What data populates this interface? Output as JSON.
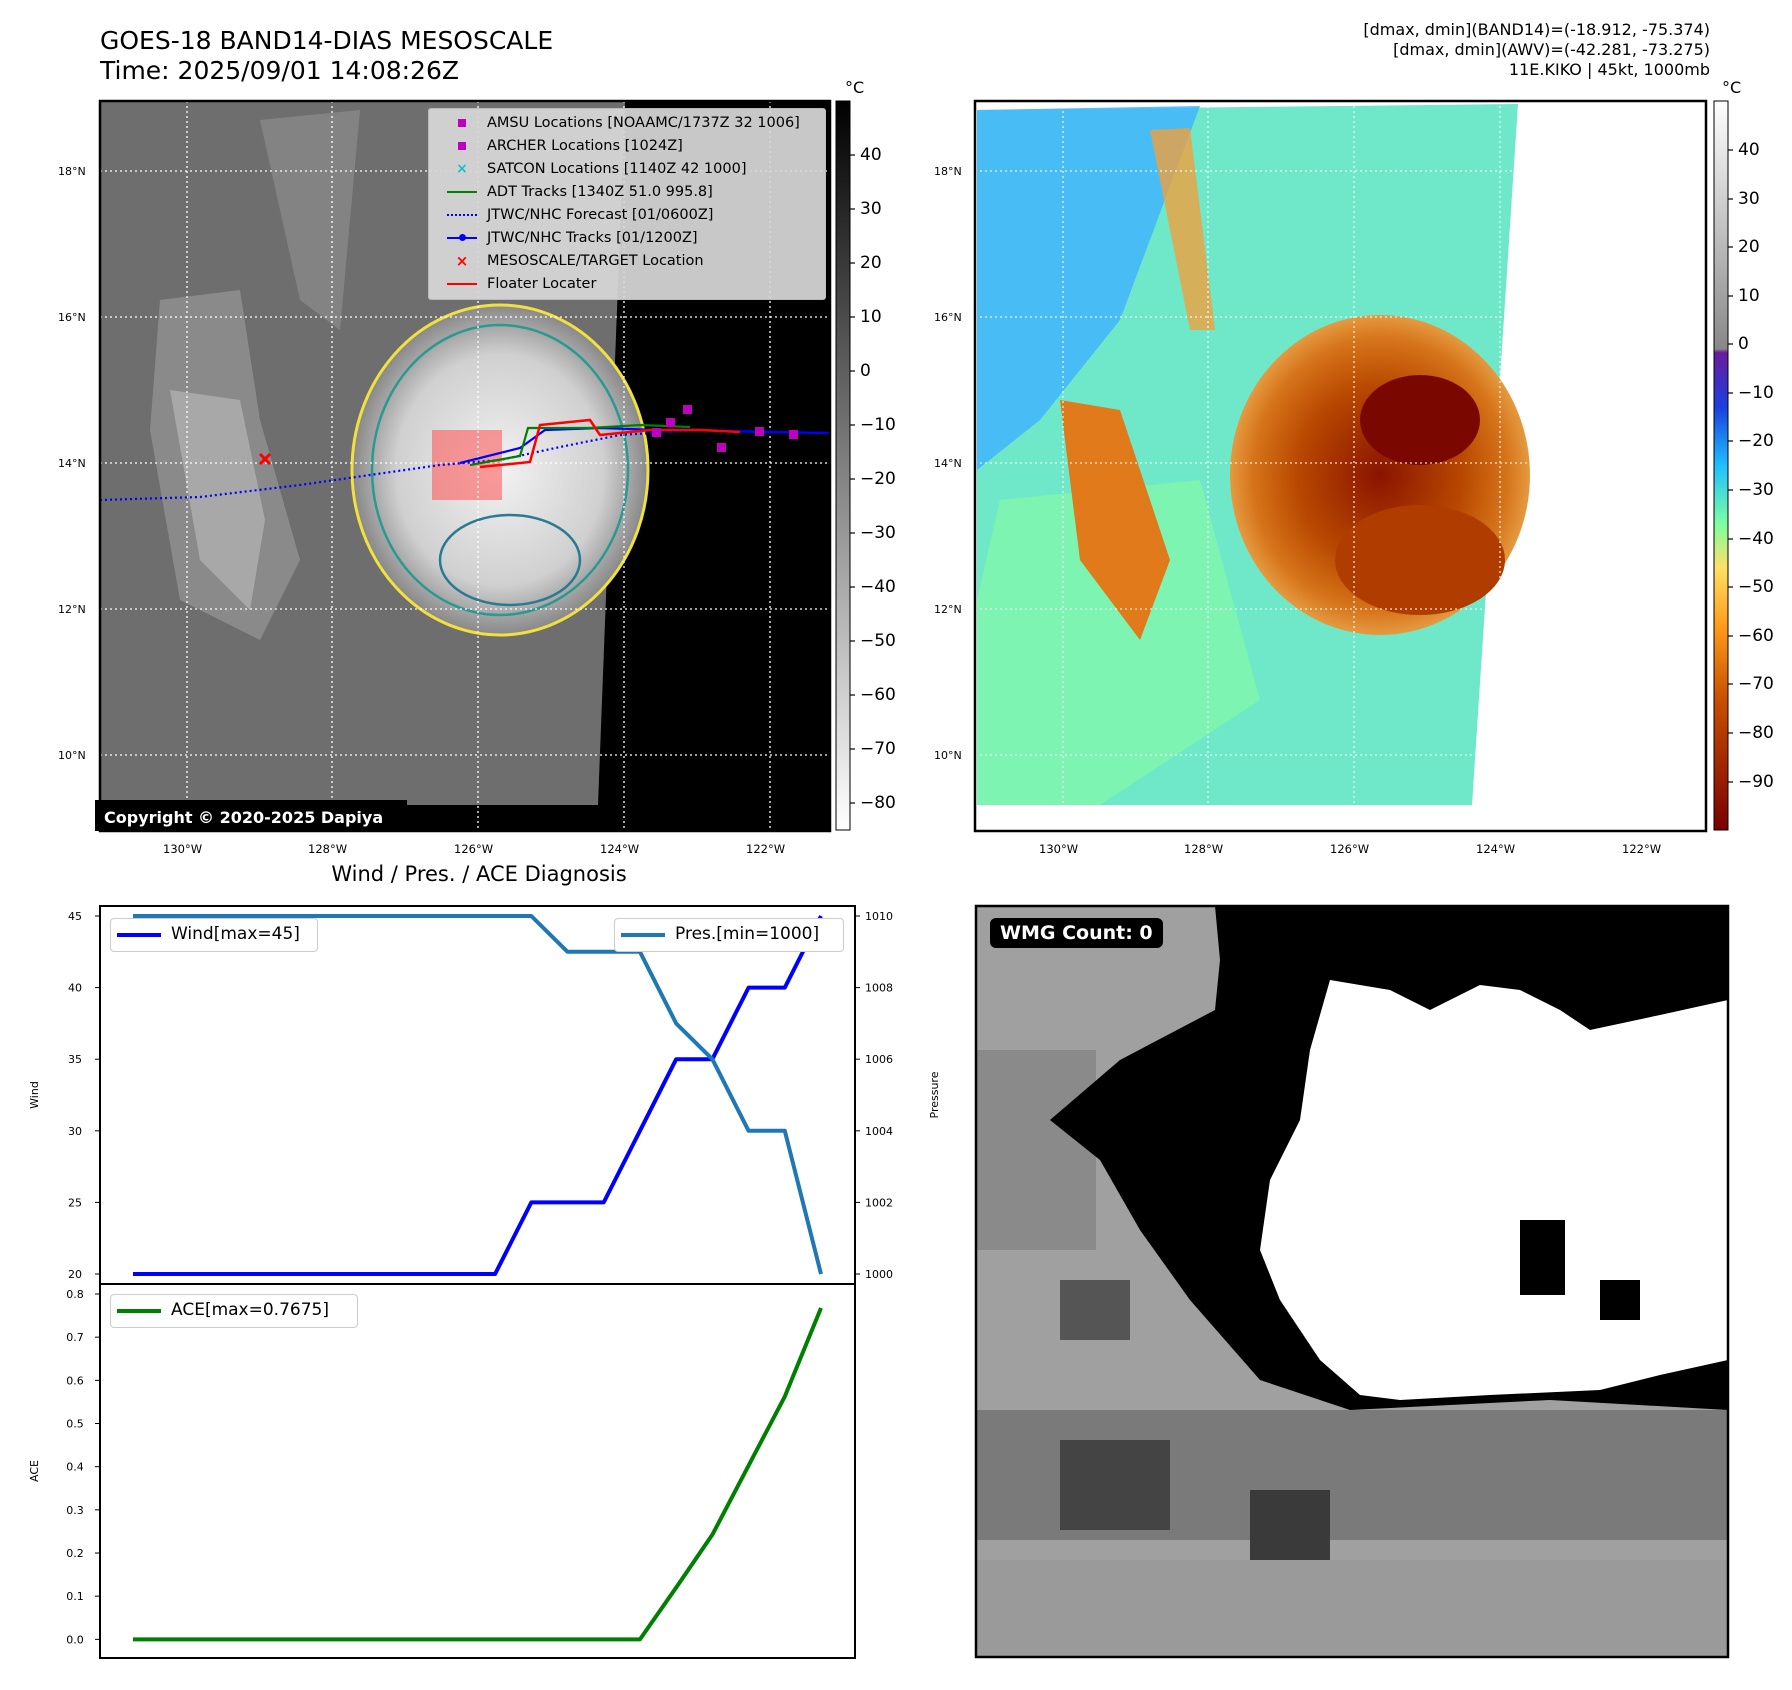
{
  "header": {
    "title_line1": "GOES-18 BAND14-DIAS MESOSCALE",
    "title_line2": "Time: 2025/09/01 14:08:26Z",
    "info_line1": "[dmax, dmin](BAND14)=(-18.912, -75.374)",
    "info_line2": "[dmax, dmin](AWV)=(-42.281, -73.275)",
    "info_line3": "11E.KIKO | 45kt, 1000mb"
  },
  "map_axes": {
    "lat_ticks": [
      "18°N",
      "16°N",
      "14°N",
      "12°N",
      "10°N"
    ],
    "lon_ticks": [
      "130°W",
      "128°W",
      "126°W",
      "124°W",
      "122°W"
    ]
  },
  "colorbar_left": {
    "unit": "°C",
    "ticks": [
      "40",
      "30",
      "20",
      "10",
      "0",
      "−10",
      "−20",
      "−30",
      "−40",
      "−50",
      "−60",
      "−70",
      "−80"
    ],
    "range": [
      -85,
      50
    ]
  },
  "colorbar_right": {
    "unit": "°C",
    "ticks": [
      "40",
      "30",
      "20",
      "10",
      "0",
      "−10",
      "−20",
      "−30",
      "−40",
      "−50",
      "−60",
      "−70",
      "−80",
      "−90"
    ],
    "range": [
      -100,
      50
    ]
  },
  "legend": {
    "amsu": "AMSU Locations [NOAAMC/1737Z 32 1006]",
    "archer": "ARCHER Locations [1024Z]",
    "satcon": "SATCON Locations [1140Z 42 1000]",
    "adt": "ADT Tracks [1340Z 51.0 995.8]",
    "forecast": "JTWC/NHC Forecast [01/0600Z]",
    "tracks": "JTWC/NHC Tracks [01/1200Z]",
    "target": "MESOSCALE/TARGET Location",
    "floater": "Floater Locater"
  },
  "copyright": "Copyright © 2020-2025 Dapiya",
  "wmg": {
    "label": "WMG Count: 0"
  },
  "colors": {
    "wind": "#0000ff",
    "pressure": "#1f77b4",
    "ace": "#008000",
    "amsu": "#bf00bf",
    "satcon": "#17becf",
    "adt": "#008000",
    "forecast": "#0000ff",
    "target": "#ff0000"
  },
  "chart_data": {
    "type": "line",
    "title": "Wind / Pres. / ACE Diagnosis",
    "panels": [
      {
        "ylabel": "Wind",
        "ylim": [
          20,
          45
        ],
        "yticks": [
          20,
          25,
          30,
          35,
          40,
          45
        ],
        "series": [
          {
            "name": "Wind[max=45]",
            "values": [
              20,
              20,
              20,
              20,
              20,
              20,
              20,
              20,
              20,
              20,
              20,
              25,
              25,
              25,
              30,
              35,
              35,
              40,
              40,
              45
            ]
          }
        ],
        "y2label": "Pressure",
        "y2lim": [
          1000,
          1010
        ],
        "y2ticks": [
          1000,
          1002,
          1004,
          1006,
          1008,
          1010
        ],
        "series2": [
          {
            "name": "Pres.[min=1000]",
            "values": [
              1010,
              1010,
              1010,
              1010,
              1010,
              1010,
              1010,
              1010,
              1010,
              1010,
              1010,
              1010,
              1009,
              1009,
              1009,
              1007,
              1006,
              1004,
              1004,
              1000
            ]
          }
        ]
      },
      {
        "ylabel": "ACE",
        "ylim": [
          -0.02,
          0.8
        ],
        "yticks": [
          0.0,
          0.1,
          0.2,
          0.3,
          0.4,
          0.5,
          0.6,
          0.7,
          0.8
        ],
        "series": [
          {
            "name": "ACE[max=0.7675]",
            "values": [
              0,
              0,
              0,
              0,
              0,
              0,
              0,
              0,
              0,
              0,
              0,
              0,
              0,
              0,
              0,
              0.12,
              0.2425,
              0.4025,
              0.5625,
              0.7675
            ]
          }
        ]
      }
    ]
  }
}
